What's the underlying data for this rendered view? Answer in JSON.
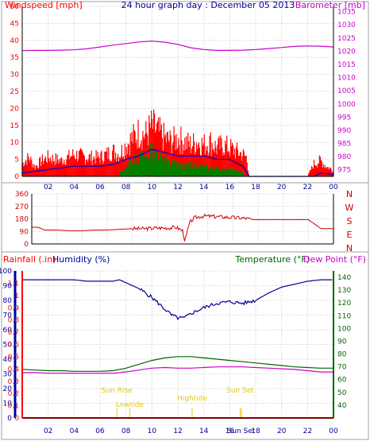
{
  "colors": {
    "wind": "#ff0000",
    "wind_avg": "#0000cc",
    "gust_low": "#008000",
    "baro": "#cc00cc",
    "dir": "#cc0000",
    "humidity": "#000099",
    "temperature": "#006600",
    "dewpoint": "#cc00cc",
    "rain": "#ff0000",
    "sun": "#e8c800",
    "grid": "#c8c8c8",
    "axis": "#000000"
  },
  "chart_data": [
    {
      "type": "line",
      "title": "24 hour graph day : December 05 2013",
      "left_axis_label": "Windspeed [mph]",
      "right_axis_label": "Barometer [mb]",
      "x_ticks": [
        "02",
        "04",
        "06",
        "08",
        "10",
        "12",
        "14",
        "16",
        "18",
        "20",
        "22",
        "00"
      ],
      "x_range": [
        0,
        24
      ],
      "y_left_ticks": [
        "0",
        "5",
        "10",
        "15",
        "20",
        "25",
        "30",
        "35",
        "40",
        "45",
        "50"
      ],
      "y_left_range": [
        0,
        50
      ],
      "y_right_ticks": [
        "975",
        "980",
        "985",
        "990",
        "995",
        "1000",
        "1005",
        "1010",
        "1015",
        "1020",
        "1025",
        "1030",
        "1035"
      ],
      "y_right_range": [
        972.5,
        1037
      ],
      "series": [
        {
          "name": "Windspeed",
          "axis": "left",
          "x": [
            0,
            0.5,
            1,
            1.5,
            2,
            3,
            4,
            5,
            6,
            7,
            7.5,
            8,
            8.5,
            9,
            9.5,
            10,
            10.5,
            11,
            11.5,
            12,
            12.5,
            13,
            13.5,
            14,
            14.5,
            15,
            15.5,
            16,
            16.5,
            17,
            17.3,
            17.5,
            18,
            19,
            20,
            21,
            22,
            22.5,
            23,
            23.5,
            24
          ],
          "values": [
            4,
            6,
            3,
            5,
            6,
            5,
            7,
            6,
            6,
            8,
            7,
            10,
            12,
            14,
            13,
            16,
            14,
            12,
            11,
            12,
            11,
            10,
            11,
            10,
            11,
            9,
            10,
            9,
            8,
            7,
            6,
            0,
            0,
            0,
            0,
            0,
            0,
            4,
            5,
            3,
            2
          ]
        },
        {
          "name": "Windspeed average",
          "axis": "left",
          "x": [
            0,
            1,
            2,
            3,
            4,
            5,
            6,
            7,
            8,
            9,
            10,
            11,
            12,
            13,
            14,
            15,
            16,
            17,
            17.5,
            22.5,
            23,
            24
          ],
          "values": [
            1,
            1.5,
            2,
            2.5,
            3,
            3,
            3,
            3.5,
            5,
            6,
            8,
            7,
            6,
            6,
            6,
            5,
            5,
            3,
            0,
            0,
            1,
            0.5
          ]
        },
        {
          "name": "Gust low",
          "axis": "left",
          "x": [
            7.5,
            8,
            8.5,
            9,
            9.5,
            10,
            10.5,
            11,
            11.5,
            12,
            12.5,
            13,
            13.5,
            14,
            14.5,
            15,
            15.5,
            16,
            16.5,
            17
          ],
          "values": [
            1,
            3,
            5,
            6,
            6,
            8,
            7,
            5,
            4,
            4,
            3,
            4,
            3,
            3,
            3,
            3,
            2,
            3,
            2,
            1
          ]
        },
        {
          "name": "Barometer",
          "axis": "right",
          "x": [
            0,
            1,
            2,
            3,
            4,
            5,
            6,
            7,
            8,
            9,
            10,
            11,
            12,
            13,
            14,
            15,
            16,
            17,
            18,
            19,
            20,
            21,
            22,
            23,
            24
          ],
          "values": [
            1020.2,
            1020.3,
            1020.3,
            1020.4,
            1020.5,
            1020.9,
            1021.6,
            1022.3,
            1022.9,
            1023.5,
            1023.8,
            1023.4,
            1022.6,
            1021.3,
            1020.6,
            1020.3,
            1020.3,
            1020.4,
            1020.6,
            1021.0,
            1021.4,
            1021.8,
            1022.0,
            1021.9,
            1021.6
          ]
        }
      ]
    },
    {
      "type": "line",
      "direction_labels": [
        "N",
        "W",
        "S",
        "E",
        "N"
      ],
      "y_ticks": [
        "360",
        "270",
        "180",
        "90",
        "0"
      ],
      "y_range": [
        0,
        360
      ],
      "x_range": [
        0,
        24
      ],
      "series": [
        {
          "name": "Wind direction",
          "x": [
            0,
            0.5,
            1,
            2,
            3,
            4,
            5,
            6,
            7,
            8,
            9,
            10,
            11,
            11.5,
            12,
            12.2,
            12.4,
            12.6,
            13,
            13.5,
            14,
            15,
            16,
            17,
            17.6,
            18,
            19,
            20,
            21,
            22,
            23,
            24
          ],
          "values": [
            120,
            120,
            100,
            100,
            95,
            95,
            100,
            100,
            105,
            110,
            110,
            115,
            115,
            120,
            95,
            20,
            100,
            160,
            190,
            200,
            200,
            195,
            190,
            185,
            175,
            175,
            175,
            175,
            175,
            175,
            110,
            110
          ]
        }
      ]
    },
    {
      "type": "line",
      "rain_label": "Rainfall (.in)",
      "humidity_label": "Humidity (%)",
      "temperature_label": "Temperature (°F)",
      "dewpoint_label": "Dew Point (°F)",
      "rain_ticks": [
        "0",
        "0.1",
        "0.2",
        "0.3",
        "0.4",
        "0.5",
        "0.6",
        "0.7",
        "0.8",
        "0.9",
        "1",
        "1.1"
      ],
      "humidity_ticks": [
        "0",
        "10",
        "20",
        "30",
        "40",
        "50",
        "60",
        "70",
        "80",
        "90",
        "100"
      ],
      "temp_ticks": [
        "40",
        "50",
        "60",
        "70",
        "80",
        "90",
        "100",
        "110",
        "120",
        "130",
        "140"
      ],
      "rain_range": [
        0,
        1.2
      ],
      "humidity_range": [
        0,
        100
      ],
      "temp_range": [
        30,
        145
      ],
      "x_range": [
        0,
        24
      ],
      "annotations": [
        {
          "label": "Sun Rise",
          "x": 7.3
        },
        {
          "label": "Lowtide",
          "x": 8.3
        },
        {
          "label": "Hightide",
          "x": 13.1
        },
        {
          "label": "Sun Set",
          "x": 16.8
        },
        {
          "label": "Sun Set",
          "x": 16.9
        }
      ],
      "series": [
        {
          "name": "Humidity",
          "axis": "humidity",
          "x": [
            0,
            1,
            2,
            3,
            4,
            5,
            6,
            7,
            7.5,
            8,
            9,
            10,
            11,
            11.5,
            12,
            12.5,
            13,
            14,
            15,
            16,
            17,
            18,
            19,
            20,
            21,
            22,
            23,
            24
          ],
          "values": [
            94,
            94,
            94,
            94,
            94,
            93,
            93,
            93,
            94,
            92,
            88,
            82,
            74,
            70,
            68,
            68,
            71,
            75,
            78,
            79,
            78,
            80,
            85,
            89,
            91,
            93,
            94,
            94
          ]
        },
        {
          "name": "Temperature",
          "axis": "temp",
          "x": [
            0,
            1,
            2,
            3,
            4,
            5,
            6,
            7,
            8,
            9,
            10,
            11,
            12,
            13,
            14,
            15,
            16,
            17,
            18,
            19,
            20,
            21,
            22,
            23,
            24
          ],
          "values": [
            68,
            67.5,
            67,
            67,
            66.5,
            66.5,
            66.5,
            67,
            69,
            72,
            75,
            77,
            78,
            78,
            77,
            76,
            75,
            74,
            73,
            72,
            71,
            70,
            69.5,
            69,
            69
          ]
        },
        {
          "name": "Dew Point",
          "axis": "temp",
          "x": [
            0,
            1,
            2,
            3,
            4,
            5,
            6,
            7,
            8,
            9,
            10,
            11,
            12,
            13,
            14,
            15,
            16,
            17,
            18,
            19,
            20,
            21,
            22,
            23,
            24
          ],
          "values": [
            65.5,
            65.5,
            65,
            65,
            65,
            65,
            65,
            65,
            66,
            67.5,
            69,
            69.5,
            69,
            69,
            69.5,
            70,
            70,
            70,
            69.5,
            69,
            68.5,
            68,
            67,
            66,
            66
          ]
        },
        {
          "name": "Rainfall",
          "axis": "rain",
          "x": [
            0,
            24
          ],
          "values": [
            0,
            0
          ]
        }
      ]
    }
  ]
}
